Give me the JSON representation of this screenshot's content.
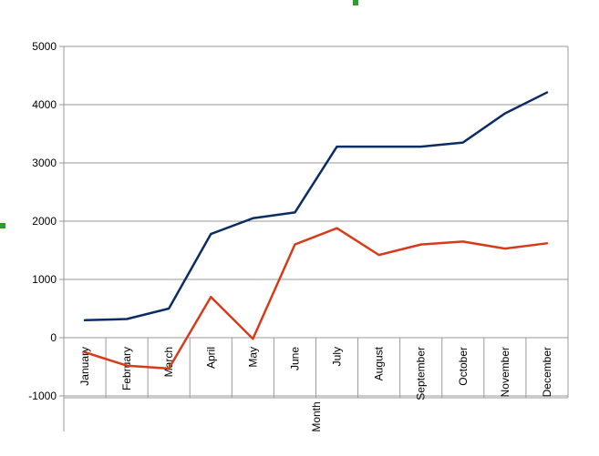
{
  "chart_data": {
    "type": "line",
    "title": "",
    "xlabel": "Month",
    "ylabel": "",
    "categories": [
      "January",
      "February",
      "March",
      "April",
      "May",
      "June",
      "July",
      "August",
      "September",
      "October",
      "November",
      "December"
    ],
    "ylim": [
      -1000,
      5000
    ],
    "yticks": [
      -1000,
      0,
      1000,
      2000,
      3000,
      4000,
      5000
    ],
    "grid": true,
    "legend": "none",
    "series": [
      {
        "color": "#0b2d66",
        "values": [
          300,
          320,
          500,
          1780,
          2050,
          2150,
          3280,
          3280,
          3280,
          3350,
          3850,
          4210
        ]
      },
      {
        "color": "#d63b1a",
        "values": [
          -250,
          -480,
          -530,
          700,
          -20,
          1600,
          1880,
          1420,
          1600,
          1650,
          1530,
          1620
        ]
      }
    ]
  }
}
